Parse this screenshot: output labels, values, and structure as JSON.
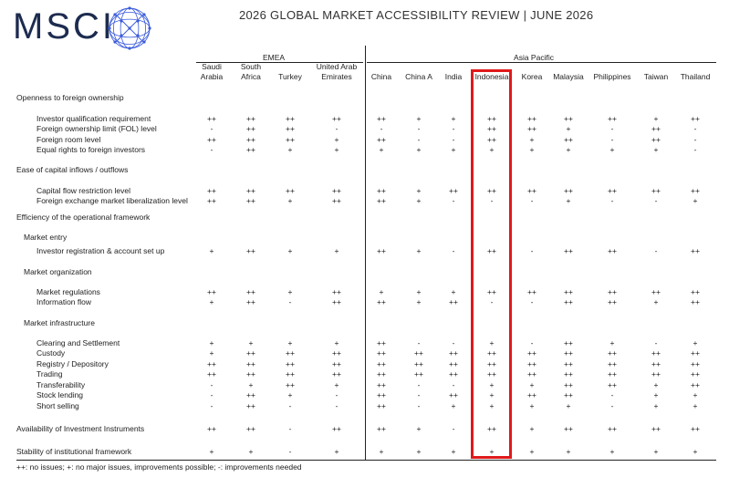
{
  "header": {
    "logo_text": "MSCI",
    "title": "2026 GLOBAL MARKET ACCESSIBILITY REVIEW | JUNE 2026",
    "logo_color": "#1d2b4f",
    "globe_color": "#3b5bdb"
  },
  "groups": {
    "emea": "EMEA",
    "asia_pacific": "Asia Pacific"
  },
  "columns": [
    [
      "Saudi",
      "Arabia"
    ],
    [
      "South",
      "Africa"
    ],
    [
      "Turkey"
    ],
    [
      "United Arab",
      "Emirates"
    ],
    [
      "China"
    ],
    [
      "China A"
    ],
    [
      "India"
    ],
    [
      "Indonesia"
    ],
    [
      "Korea"
    ],
    [
      "Malaysia"
    ],
    [
      "Philippines"
    ],
    [
      "Taiwan"
    ],
    [
      "Thailand"
    ]
  ],
  "highlight_column": "Indonesia",
  "highlight_color": "#e0191b",
  "rows": [
    {
      "label": "Openness to foreign ownership",
      "level": 0,
      "values": null
    },
    {
      "label": "Investor qualification requirement",
      "level": 2,
      "values": [
        "++",
        "++",
        "++",
        "++",
        "++",
        "+",
        "+",
        "++",
        "++",
        "++",
        "++",
        "+",
        "++"
      ]
    },
    {
      "label": "Foreign ownership limit (FOL) level",
      "level": 2,
      "values": [
        "-",
        "++",
        "++",
        "-",
        "-",
        "-",
        "-",
        "++",
        "++",
        "+",
        "-",
        "++",
        "-"
      ]
    },
    {
      "label": "Foreign room level",
      "level": 2,
      "values": [
        "++",
        "++",
        "++",
        "+",
        "++",
        "-",
        "-",
        "++",
        "+",
        "++",
        "-",
        "++",
        "-"
      ]
    },
    {
      "label": "Equal rights to foreign investors",
      "level": 2,
      "values": [
        "-",
        "++",
        "+",
        "+",
        "+",
        "+",
        "+",
        "+",
        "+",
        "+",
        "+",
        "+",
        "-"
      ]
    },
    {
      "label": "Ease of capital inflows / outflows",
      "level": 0,
      "values": null
    },
    {
      "label": "Capital flow restriction level",
      "level": 2,
      "values": [
        "++",
        "++",
        "++",
        "++",
        "++",
        "+",
        "++",
        "++",
        "++",
        "++",
        "++",
        "++",
        "++"
      ]
    },
    {
      "label": "Foreign exchange market liberalization level",
      "level": 2,
      "values": [
        "++",
        "++",
        "+",
        "++",
        "++",
        "+",
        "-",
        "-",
        "-",
        "+",
        "-",
        "-",
        "+"
      ]
    },
    {
      "label": "Efficiency of the operational framework",
      "level": 0,
      "values": null
    },
    {
      "label": "Market entry",
      "level": 1,
      "values": null
    },
    {
      "label": "Investor registration & account set up",
      "level": 2,
      "values": [
        "+",
        "++",
        "+",
        "+",
        "++",
        "+",
        "-",
        "++",
        "-",
        "++",
        "++",
        "-",
        "++"
      ]
    },
    {
      "label": "Market organization",
      "level": 1,
      "values": null
    },
    {
      "label": "Market regulations",
      "level": 2,
      "values": [
        "++",
        "++",
        "+",
        "++",
        "+",
        "+",
        "+",
        "++",
        "++",
        "++",
        "++",
        "++",
        "++"
      ]
    },
    {
      "label": "Information flow",
      "level": 2,
      "values": [
        "+",
        "++",
        "-",
        "++",
        "++",
        "+",
        "++",
        "-",
        "-",
        "++",
        "++",
        "+",
        "++"
      ]
    },
    {
      "label": "Market infrastructure",
      "level": 1,
      "values": null
    },
    {
      "label": "Clearing and Settlement",
      "level": 2,
      "values": [
        "+",
        "+",
        "+",
        "+",
        "++",
        "-",
        "-",
        "+",
        "-",
        "++",
        "+",
        "-",
        "+"
      ]
    },
    {
      "label": "Custody",
      "level": 2,
      "values": [
        "+",
        "++",
        "++",
        "++",
        "++",
        "++",
        "++",
        "++",
        "++",
        "++",
        "++",
        "++",
        "++"
      ]
    },
    {
      "label": "Registry / Depository",
      "level": 2,
      "values": [
        "++",
        "++",
        "++",
        "++",
        "++",
        "++",
        "++",
        "++",
        "++",
        "++",
        "++",
        "++",
        "++"
      ]
    },
    {
      "label": "Trading",
      "level": 2,
      "values": [
        "++",
        "++",
        "++",
        "++",
        "++",
        "++",
        "++",
        "++",
        "++",
        "++",
        "++",
        "++",
        "++"
      ]
    },
    {
      "label": "Transferability",
      "level": 2,
      "values": [
        "-",
        "+",
        "++",
        "+",
        "++",
        "-",
        "-",
        "+",
        "+",
        "++",
        "++",
        "+",
        "++"
      ]
    },
    {
      "label": "Stock lending",
      "level": 2,
      "values": [
        "-",
        "++",
        "+",
        "-",
        "++",
        "-",
        "++",
        "+",
        "++",
        "++",
        "-",
        "+",
        "+"
      ]
    },
    {
      "label": "Short selling",
      "level": 2,
      "values": [
        "-",
        "++",
        "-",
        "-",
        "++",
        "-",
        "+",
        "+",
        "+",
        "+",
        "-",
        "+",
        "+"
      ]
    },
    {
      "label": "Availability of Investment Instruments",
      "level": 0,
      "values": [
        "++",
        "++",
        "-",
        "++",
        "++",
        "+",
        "-",
        "++",
        "+",
        "++",
        "++",
        "++",
        "++"
      ]
    },
    {
      "label": "Stability of institutional framework",
      "level": 0,
      "values": [
        "+",
        "+",
        "-",
        "+",
        "+",
        "+",
        "+",
        "+",
        "+",
        "+",
        "+",
        "+",
        "+"
      ]
    }
  ],
  "footnote": "++: no issues; +: no major issues, improvements possible; -: improvements needed"
}
